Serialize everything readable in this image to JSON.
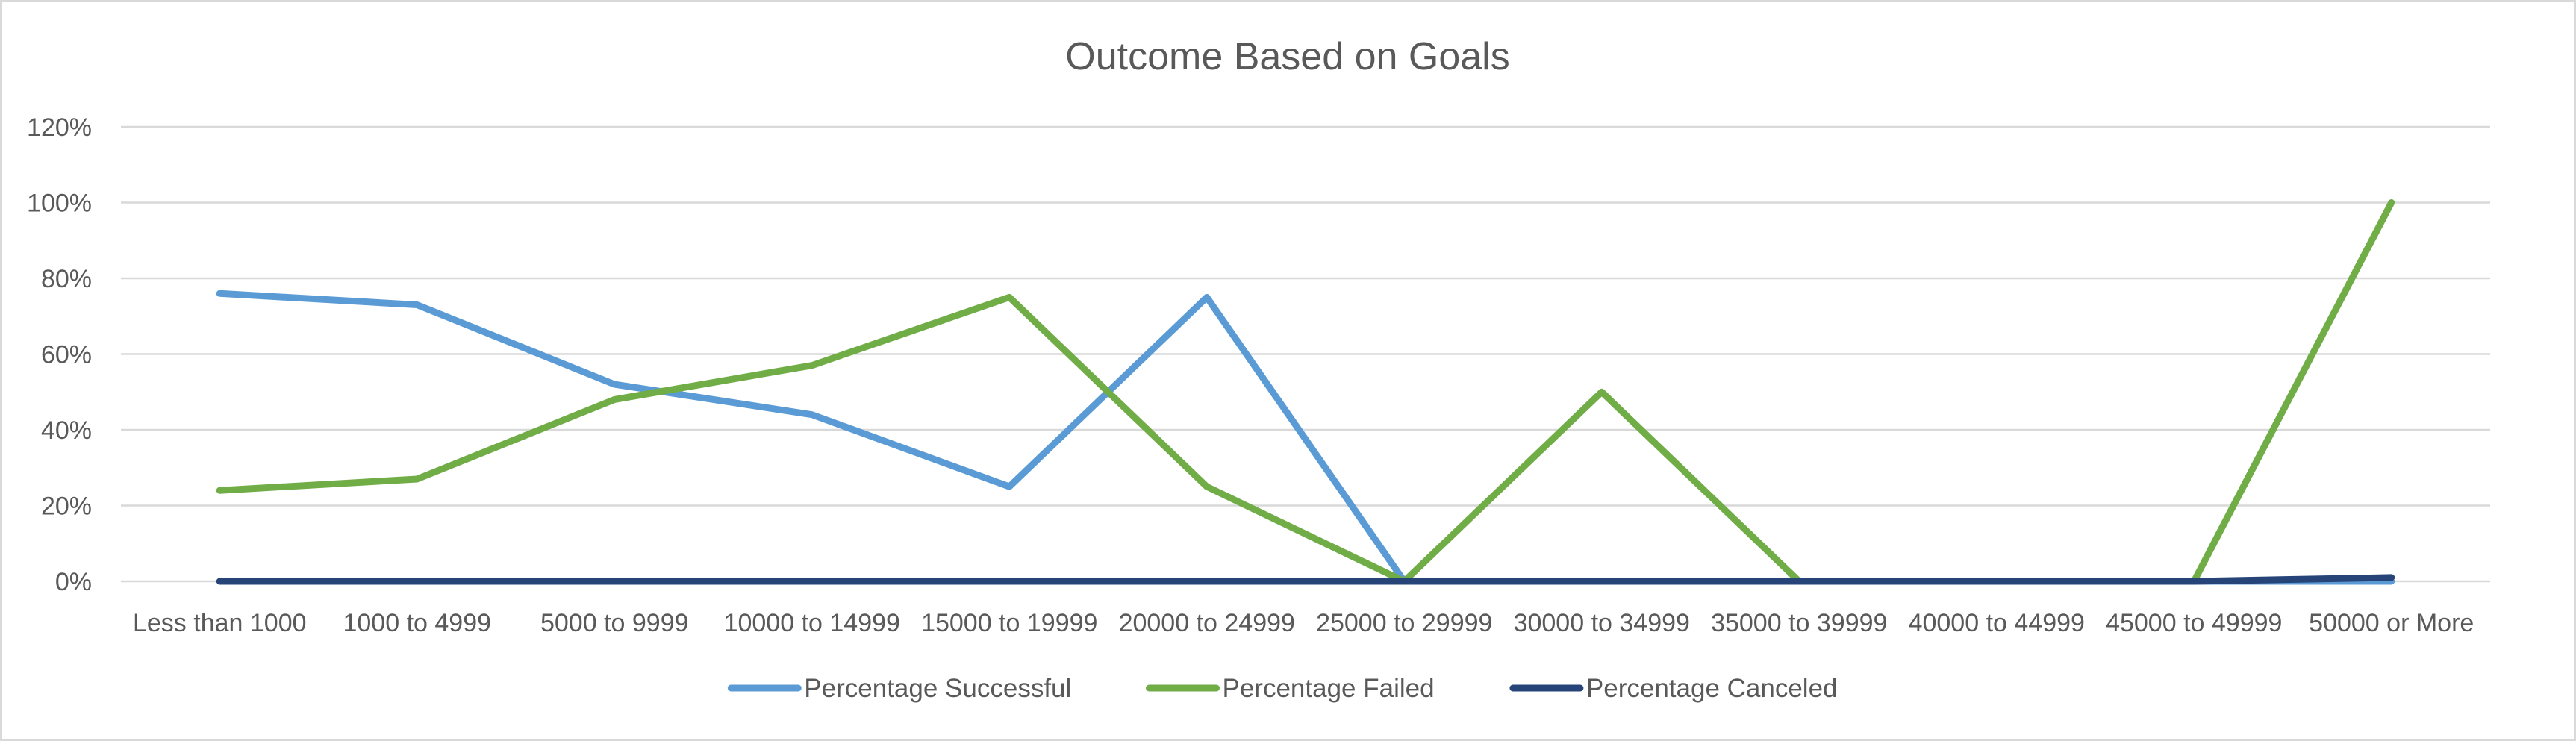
{
  "chart_data": {
    "type": "line",
    "title": "Outcome Based on Goals",
    "xlabel": "",
    "ylabel": "",
    "ylim": [
      0,
      1.2
    ],
    "yticks": [
      "0%",
      "20%",
      "40%",
      "60%",
      "80%",
      "100%",
      "120%"
    ],
    "grid": true,
    "legend_position": "bottom",
    "categories": [
      "Less than 1000",
      "1000 to 4999",
      "5000 to 9999",
      "10000 to 14999",
      "15000 to 19999",
      "20000 to 24999",
      "25000 to 29999",
      "30000 to 34999",
      "35000 to 39999",
      "40000 to 44999",
      "45000 to 49999",
      "50000 or More"
    ],
    "series": [
      {
        "name": "Percentage Successful",
        "color": "#5b9bd5",
        "values": [
          0.76,
          0.73,
          0.52,
          0.44,
          0.25,
          0.75,
          0.0,
          0.0,
          0.0,
          0.0,
          0.0,
          0.0
        ]
      },
      {
        "name": "Percentage Failed",
        "color": "#70ad47",
        "values": [
          0.24,
          0.27,
          0.48,
          0.57,
          0.75,
          0.25,
          0.0,
          0.5,
          0.0,
          0.0,
          0.0,
          1.0
        ]
      },
      {
        "name": "Percentage Canceled",
        "color": "#264478",
        "values": [
          0.0,
          0.0,
          0.0,
          0.0,
          0.0,
          0.0,
          0.0,
          0.0,
          0.0,
          0.0,
          0.0,
          0.01
        ]
      }
    ]
  }
}
